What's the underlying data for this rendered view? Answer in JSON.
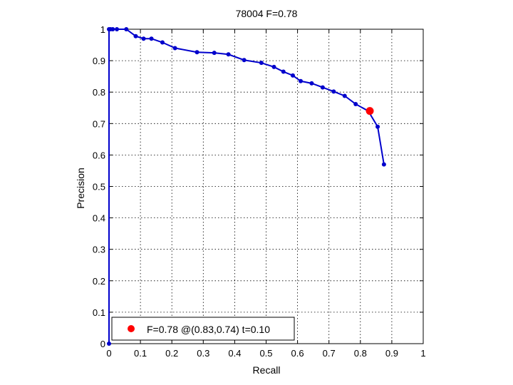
{
  "chart_data": {
    "type": "line",
    "title": "78004 F=0.78",
    "xlabel": "Recall",
    "ylabel": "Precision",
    "xlim": [
      0,
      1
    ],
    "ylim": [
      0,
      1
    ],
    "grid": true,
    "xticks": [
      "0",
      "0.1",
      "0.2",
      "0.3",
      "0.4",
      "0.5",
      "0.6",
      "0.7",
      "0.8",
      "0.9",
      "1"
    ],
    "yticks": [
      "0",
      "0.1",
      "0.2",
      "0.3",
      "0.4",
      "0.5",
      "0.6",
      "0.7",
      "0.8",
      "0.9",
      "1"
    ],
    "series": [
      {
        "color": "#0000cc",
        "marker": "dot",
        "x": [
          0.0,
          0.0,
          0.005,
          0.012,
          0.025,
          0.055,
          0.085,
          0.11,
          0.135,
          0.17,
          0.21,
          0.28,
          0.335,
          0.38,
          0.43,
          0.485,
          0.525,
          0.555,
          0.585,
          0.61,
          0.645,
          0.68,
          0.715,
          0.75,
          0.785,
          0.825,
          0.855,
          0.875
        ],
        "y": [
          0.0,
          1.0,
          1.0,
          1.0,
          1.0,
          1.0,
          0.978,
          0.97,
          0.97,
          0.958,
          0.94,
          0.927,
          0.925,
          0.92,
          0.902,
          0.893,
          0.88,
          0.865,
          0.853,
          0.835,
          0.828,
          0.815,
          0.802,
          0.788,
          0.762,
          0.74,
          0.69,
          0.57
        ]
      }
    ],
    "highlight_point": {
      "x": 0.83,
      "y": 0.74,
      "color": "#ff0000"
    },
    "legend": {
      "position": "bottom-left",
      "entries": [
        {
          "label": "F=0.78 @(0.83,0.74) t=0.10",
          "color": "#ff0000"
        }
      ]
    }
  }
}
